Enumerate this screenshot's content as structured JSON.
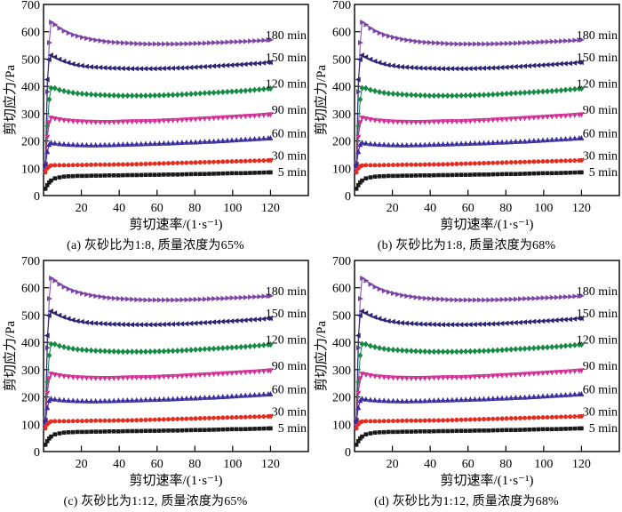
{
  "chart_data": {
    "type": "line",
    "title": "",
    "xlabel": "剪切速率/(1·s⁻¹)",
    "ylabel": "剪切应力/Pa",
    "xlim": [
      0,
      140
    ],
    "ylim": [
      0,
      700
    ],
    "xticks": [
      20,
      40,
      60,
      80,
      100,
      120
    ],
    "yticks": [
      0,
      100,
      200,
      300,
      400,
      500,
      600,
      700
    ],
    "grid": false,
    "legend_position": "inline-right",
    "note": "Four panels share the same seven curing-time series (shear stress vs shear rate); panels differ only by caption.",
    "panels": [
      {
        "id": "a",
        "caption": "(a) 灰砂比为1:8, 质量浓度为65%"
      },
      {
        "id": "b",
        "caption": "(b) 灰砂比为1:8, 质量浓度为68%"
      },
      {
        "id": "c",
        "caption": "(c) 灰砂比为1:12, 质量浓度为65%"
      },
      {
        "id": "d",
        "caption": "(d) 灰砂比为1:12, 质量浓度为68%"
      }
    ],
    "series": [
      {
        "name": "180 min",
        "color": "#7b44a6",
        "marker": "triangle-right",
        "points": [
          [
            1,
            120
          ],
          [
            2,
            380
          ],
          [
            3,
            560
          ],
          [
            4,
            635
          ],
          [
            5,
            631
          ],
          [
            6,
            626
          ],
          [
            8,
            615
          ],
          [
            10,
            606
          ],
          [
            12,
            599
          ],
          [
            14,
            593
          ],
          [
            16,
            588
          ],
          [
            18,
            584
          ],
          [
            20,
            580
          ],
          [
            24,
            574
          ],
          [
            28,
            569
          ],
          [
            32,
            565
          ],
          [
            36,
            562
          ],
          [
            40,
            560
          ],
          [
            45,
            558
          ],
          [
            50,
            556
          ],
          [
            55,
            555
          ],
          [
            60,
            555
          ],
          [
            65,
            555
          ],
          [
            70,
            555
          ],
          [
            75,
            556
          ],
          [
            80,
            557
          ],
          [
            85,
            558
          ],
          [
            90,
            560
          ],
          [
            95,
            561
          ],
          [
            100,
            563
          ],
          [
            105,
            564
          ],
          [
            110,
            566
          ],
          [
            115,
            568
          ],
          [
            120,
            570
          ]
        ]
      },
      {
        "name": "150 min",
        "color": "#2d2473",
        "marker": "triangle-left",
        "points": [
          [
            1,
            113
          ],
          [
            2,
            425
          ],
          [
            3,
            498
          ],
          [
            4,
            514
          ],
          [
            5,
            511
          ],
          [
            6,
            507
          ],
          [
            8,
            500
          ],
          [
            10,
            494
          ],
          [
            12,
            489
          ],
          [
            14,
            485
          ],
          [
            16,
            481
          ],
          [
            18,
            478
          ],
          [
            20,
            476
          ],
          [
            24,
            472
          ],
          [
            28,
            470
          ],
          [
            32,
            468
          ],
          [
            36,
            467
          ],
          [
            40,
            466
          ],
          [
            45,
            465
          ],
          [
            50,
            465
          ],
          [
            55,
            465
          ],
          [
            60,
            465
          ],
          [
            65,
            466
          ],
          [
            70,
            467
          ],
          [
            75,
            468
          ],
          [
            80,
            470
          ],
          [
            85,
            472
          ],
          [
            90,
            474
          ],
          [
            95,
            476
          ],
          [
            100,
            478
          ],
          [
            105,
            480
          ],
          [
            110,
            483
          ],
          [
            115,
            485
          ],
          [
            120,
            488
          ]
        ]
      },
      {
        "name": "120 min",
        "color": "#148a43",
        "marker": "diamond",
        "points": [
          [
            1,
            100
          ],
          [
            2,
            255
          ],
          [
            3,
            352
          ],
          [
            4,
            394
          ],
          [
            5,
            396
          ],
          [
            6,
            393
          ],
          [
            8,
            388
          ],
          [
            10,
            384
          ],
          [
            12,
            381
          ],
          [
            14,
            378
          ],
          [
            16,
            376
          ],
          [
            18,
            374
          ],
          [
            20,
            373
          ],
          [
            24,
            371
          ],
          [
            28,
            369
          ],
          [
            32,
            368
          ],
          [
            36,
            367
          ],
          [
            40,
            366
          ],
          [
            45,
            366
          ],
          [
            50,
            366
          ],
          [
            55,
            366
          ],
          [
            60,
            367
          ],
          [
            65,
            368
          ],
          [
            70,
            369
          ],
          [
            75,
            371
          ],
          [
            80,
            373
          ],
          [
            85,
            375
          ],
          [
            90,
            377
          ],
          [
            95,
            379
          ],
          [
            100,
            381
          ],
          [
            105,
            383
          ],
          [
            110,
            386
          ],
          [
            115,
            389
          ],
          [
            120,
            392
          ]
        ]
      },
      {
        "name": "90 min",
        "color": "#d12f96",
        "marker": "triangle-down",
        "points": [
          [
            1,
            93
          ],
          [
            2,
            215
          ],
          [
            3,
            268
          ],
          [
            4,
            285
          ],
          [
            5,
            284
          ],
          [
            6,
            282
          ],
          [
            8,
            279
          ],
          [
            10,
            277
          ],
          [
            12,
            275
          ],
          [
            14,
            274
          ],
          [
            16,
            273
          ],
          [
            18,
            272
          ],
          [
            20,
            271
          ],
          [
            24,
            270
          ],
          [
            28,
            269
          ],
          [
            32,
            269
          ],
          [
            36,
            269
          ],
          [
            40,
            270
          ],
          [
            45,
            271
          ],
          [
            50,
            272
          ],
          [
            55,
            272
          ],
          [
            60,
            273
          ],
          [
            65,
            275
          ],
          [
            70,
            276
          ],
          [
            75,
            278
          ],
          [
            80,
            280
          ],
          [
            85,
            282
          ],
          [
            90,
            284
          ],
          [
            95,
            286
          ],
          [
            100,
            288
          ],
          [
            105,
            290
          ],
          [
            110,
            292
          ],
          [
            115,
            294
          ],
          [
            120,
            297
          ]
        ]
      },
      {
        "name": "60 min",
        "color": "#3a2f9e",
        "marker": "triangle-up",
        "points": [
          [
            1,
            108
          ],
          [
            2,
            160
          ],
          [
            3,
            186
          ],
          [
            4,
            193
          ],
          [
            5,
            192
          ],
          [
            6,
            191
          ],
          [
            8,
            189
          ],
          [
            10,
            188
          ],
          [
            12,
            187
          ],
          [
            14,
            186
          ],
          [
            16,
            186
          ],
          [
            18,
            185
          ],
          [
            20,
            185
          ],
          [
            24,
            184
          ],
          [
            28,
            184
          ],
          [
            32,
            185
          ],
          [
            36,
            185
          ],
          [
            40,
            186
          ],
          [
            45,
            187
          ],
          [
            50,
            188
          ],
          [
            55,
            189
          ],
          [
            60,
            190
          ],
          [
            65,
            191
          ],
          [
            70,
            192
          ],
          [
            75,
            194
          ],
          [
            80,
            195
          ],
          [
            85,
            197
          ],
          [
            90,
            198
          ],
          [
            95,
            200
          ],
          [
            100,
            202
          ],
          [
            105,
            204
          ],
          [
            110,
            206
          ],
          [
            115,
            208
          ],
          [
            120,
            210
          ]
        ]
      },
      {
        "name": "30 min",
        "color": "#e42d21",
        "marker": "circle",
        "points": [
          [
            1,
            85
          ],
          [
            2,
            100
          ],
          [
            3,
            107
          ],
          [
            4,
            110
          ],
          [
            6,
            111
          ],
          [
            8,
            111
          ],
          [
            10,
            111
          ],
          [
            14,
            111
          ],
          [
            18,
            112
          ],
          [
            22,
            112
          ],
          [
            26,
            113
          ],
          [
            30,
            113
          ],
          [
            35,
            113
          ],
          [
            40,
            114
          ],
          [
            45,
            114
          ],
          [
            50,
            115
          ],
          [
            55,
            116
          ],
          [
            60,
            117
          ],
          [
            65,
            118
          ],
          [
            70,
            119
          ],
          [
            75,
            120
          ],
          [
            80,
            121
          ],
          [
            85,
            122
          ],
          [
            90,
            123
          ],
          [
            95,
            124
          ],
          [
            100,
            125
          ],
          [
            105,
            126
          ],
          [
            110,
            127
          ],
          [
            115,
            128
          ],
          [
            120,
            129
          ]
        ]
      },
      {
        "name": "5 min",
        "color": "#1a1a1a",
        "marker": "square",
        "points": [
          [
            1,
            25
          ],
          [
            2,
            38
          ],
          [
            3,
            48
          ],
          [
            4,
            55
          ],
          [
            5,
            60
          ],
          [
            6,
            63
          ],
          [
            8,
            66
          ],
          [
            10,
            69
          ],
          [
            12,
            70
          ],
          [
            14,
            71
          ],
          [
            16,
            71
          ],
          [
            18,
            72
          ],
          [
            22,
            72
          ],
          [
            26,
            73
          ],
          [
            30,
            73
          ],
          [
            35,
            74
          ],
          [
            40,
            74
          ],
          [
            45,
            75
          ],
          [
            50,
            75
          ],
          [
            55,
            76
          ],
          [
            60,
            76
          ],
          [
            65,
            77
          ],
          [
            70,
            77
          ],
          [
            75,
            78
          ],
          [
            80,
            79
          ],
          [
            85,
            79
          ],
          [
            90,
            80
          ],
          [
            95,
            81
          ],
          [
            100,
            82
          ],
          [
            105,
            82
          ],
          [
            110,
            83
          ],
          [
            115,
            84
          ],
          [
            120,
            85
          ]
        ]
      }
    ]
  }
}
